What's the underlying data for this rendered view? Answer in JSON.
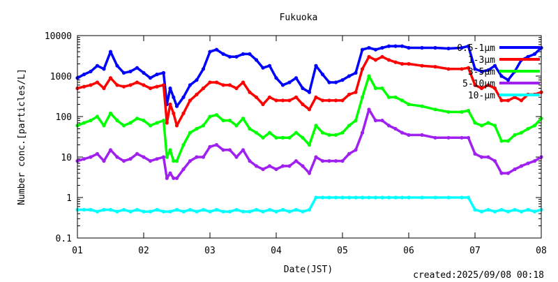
{
  "chart_data": {
    "type": "scatter",
    "title": "Fukuoka",
    "xlabel": "Date(JST)",
    "ylabel": "Number conc.[particles/L]",
    "yscale": "log",
    "ylim": [
      0.1,
      10000
    ],
    "xlim": [
      1,
      8
    ],
    "x_ticks": [
      1,
      2,
      3,
      4,
      5,
      6,
      7,
      8
    ],
    "x_tick_labels": [
      "01",
      "02",
      "03",
      "04",
      "05",
      "06",
      "07",
      "08"
    ],
    "y_ticks": [
      0.1,
      1,
      10,
      100,
      1000,
      10000
    ],
    "y_tick_labels": [
      "0.1",
      "1",
      "10",
      "100",
      "1000",
      "10000"
    ],
    "legend_position": "top-right",
    "footer": "created:2025/09/08 00:18",
    "series": [
      {
        "name": "0.5-1μm",
        "color": "#0000ff",
        "x": [
          1.0,
          1.1,
          1.2,
          1.3,
          1.4,
          1.5,
          1.6,
          1.7,
          1.8,
          1.9,
          2.0,
          2.1,
          2.2,
          2.3,
          2.35,
          2.4,
          2.45,
          2.5,
          2.6,
          2.7,
          2.8,
          2.9,
          3.0,
          3.1,
          3.2,
          3.3,
          3.4,
          3.5,
          3.6,
          3.7,
          3.8,
          3.9,
          4.0,
          4.1,
          4.2,
          4.3,
          4.4,
          4.5,
          4.6,
          4.7,
          4.8,
          4.9,
          5.0,
          5.1,
          5.2,
          5.3,
          5.4,
          5.5,
          5.6,
          5.7,
          5.8,
          5.9,
          6.0,
          6.2,
          6.4,
          6.6,
          6.8,
          6.9,
          7.0,
          7.1,
          7.2,
          7.3,
          7.4,
          7.5,
          7.6,
          7.7,
          7.8,
          7.9,
          8.0
        ],
        "y": [
          900,
          1100,
          1300,
          1800,
          1500,
          4000,
          1800,
          1200,
          1300,
          1600,
          1200,
          900,
          1100,
          1200,
          200,
          500,
          300,
          180,
          300,
          600,
          800,
          1500,
          4000,
          4500,
          3500,
          3000,
          3000,
          3500,
          3500,
          2500,
          1600,
          1800,
          900,
          600,
          700,
          900,
          500,
          400,
          1800,
          1100,
          700,
          700,
          800,
          1000,
          1200,
          4500,
          5000,
          4500,
          5000,
          5500,
          5500,
          5500,
          5000,
          5000,
          5000,
          4800,
          5000,
          5500,
          1500,
          1300,
          1400,
          1800,
          1000,
          800,
          1300,
          2500,
          3000,
          3500,
          5000
        ]
      },
      {
        "name": "1-3μm",
        "color": "#ff0000",
        "x": [
          1.0,
          1.1,
          1.2,
          1.3,
          1.4,
          1.5,
          1.6,
          1.7,
          1.8,
          1.9,
          2.0,
          2.1,
          2.2,
          2.3,
          2.35,
          2.4,
          2.45,
          2.5,
          2.6,
          2.7,
          2.8,
          2.9,
          3.0,
          3.1,
          3.2,
          3.3,
          3.4,
          3.5,
          3.6,
          3.7,
          3.8,
          3.9,
          4.0,
          4.1,
          4.2,
          4.3,
          4.4,
          4.5,
          4.6,
          4.7,
          4.8,
          4.9,
          5.0,
          5.1,
          5.2,
          5.3,
          5.4,
          5.5,
          5.6,
          5.7,
          5.8,
          5.9,
          6.0,
          6.2,
          6.4,
          6.6,
          6.8,
          6.9,
          7.0,
          7.1,
          7.2,
          7.3,
          7.4,
          7.5,
          7.6,
          7.7,
          7.8,
          7.9,
          8.0
        ],
        "y": [
          500,
          550,
          600,
          700,
          500,
          900,
          600,
          550,
          600,
          700,
          600,
          500,
          550,
          600,
          70,
          200,
          120,
          60,
          120,
          250,
          350,
          500,
          700,
          700,
          600,
          600,
          500,
          700,
          400,
          300,
          200,
          300,
          250,
          250,
          250,
          300,
          200,
          150,
          300,
          250,
          250,
          250,
          250,
          350,
          400,
          1500,
          3000,
          2500,
          3000,
          2500,
          2200,
          2000,
          2000,
          1800,
          1700,
          1500,
          1500,
          1600,
          600,
          500,
          600,
          500,
          250,
          250,
          300,
          250,
          350,
          350,
          400
        ]
      },
      {
        "name": "3-5μm",
        "color": "#00ff00",
        "x": [
          1.0,
          1.1,
          1.2,
          1.3,
          1.4,
          1.5,
          1.6,
          1.7,
          1.8,
          1.9,
          2.0,
          2.1,
          2.2,
          2.3,
          2.35,
          2.4,
          2.45,
          2.5,
          2.6,
          2.7,
          2.8,
          2.9,
          3.0,
          3.1,
          3.2,
          3.3,
          3.4,
          3.5,
          3.6,
          3.7,
          3.8,
          3.9,
          4.0,
          4.1,
          4.2,
          4.3,
          4.4,
          4.5,
          4.6,
          4.7,
          4.8,
          4.9,
          5.0,
          5.1,
          5.2,
          5.3,
          5.4,
          5.5,
          5.6,
          5.7,
          5.8,
          5.9,
          6.0,
          6.2,
          6.4,
          6.6,
          6.8,
          6.9,
          7.0,
          7.1,
          7.2,
          7.3,
          7.4,
          7.5,
          7.6,
          7.7,
          7.8,
          7.9,
          8.0
        ],
        "y": [
          60,
          70,
          80,
          100,
          60,
          120,
          80,
          60,
          70,
          90,
          80,
          60,
          70,
          80,
          10,
          15,
          8,
          8,
          20,
          40,
          50,
          60,
          100,
          110,
          80,
          80,
          60,
          90,
          50,
          40,
          30,
          40,
          30,
          30,
          30,
          40,
          30,
          20,
          60,
          40,
          35,
          35,
          40,
          60,
          80,
          300,
          1000,
          500,
          500,
          300,
          300,
          250,
          200,
          180,
          150,
          130,
          130,
          140,
          70,
          60,
          70,
          60,
          25,
          25,
          35,
          40,
          50,
          60,
          90
        ]
      },
      {
        "name": "5-10μm",
        "color": "#a020f0",
        "x": [
          1.0,
          1.1,
          1.2,
          1.3,
          1.4,
          1.5,
          1.6,
          1.7,
          1.8,
          1.9,
          2.0,
          2.1,
          2.2,
          2.3,
          2.35,
          2.4,
          2.45,
          2.5,
          2.6,
          2.7,
          2.8,
          2.9,
          3.0,
          3.1,
          3.2,
          3.3,
          3.4,
          3.5,
          3.6,
          3.7,
          3.8,
          3.9,
          4.0,
          4.1,
          4.2,
          4.3,
          4.4,
          4.5,
          4.6,
          4.7,
          4.8,
          4.9,
          5.0,
          5.1,
          5.2,
          5.3,
          5.4,
          5.5,
          5.6,
          5.7,
          5.8,
          5.9,
          6.0,
          6.2,
          6.4,
          6.6,
          6.8,
          6.9,
          7.0,
          7.1,
          7.2,
          7.3,
          7.4,
          7.5,
          7.6,
          7.7,
          7.8,
          7.9,
          8.0
        ],
        "y": [
          8,
          9,
          10,
          12,
          8,
          15,
          10,
          8,
          9,
          12,
          10,
          8,
          9,
          10,
          3,
          4,
          3,
          3,
          5,
          8,
          10,
          10,
          18,
          20,
          15,
          15,
          10,
          15,
          8,
          6,
          5,
          6,
          5,
          6,
          6,
          8,
          6,
          4,
          10,
          8,
          8,
          8,
          8,
          12,
          15,
          40,
          150,
          80,
          80,
          60,
          50,
          40,
          35,
          35,
          30,
          30,
          30,
          30,
          12,
          10,
          10,
          8,
          4,
          4,
          5,
          6,
          7,
          8,
          10
        ]
      },
      {
        "name": "10-μm",
        "color": "#00ffff",
        "x": [
          1.0,
          1.1,
          1.2,
          1.3,
          1.4,
          1.5,
          1.6,
          1.7,
          1.8,
          1.9,
          2.0,
          2.1,
          2.2,
          2.3,
          2.4,
          2.5,
          2.6,
          2.7,
          2.8,
          2.9,
          3.0,
          3.1,
          3.2,
          3.3,
          3.4,
          3.5,
          3.6,
          3.7,
          3.8,
          3.9,
          4.0,
          4.1,
          4.2,
          4.3,
          4.4,
          4.5,
          4.6,
          4.7,
          4.8,
          4.9,
          5.0,
          5.1,
          5.2,
          5.3,
          5.4,
          5.5,
          5.6,
          5.7,
          5.8,
          5.9,
          6.0,
          6.2,
          6.4,
          6.6,
          6.8,
          6.9,
          7.0,
          7.1,
          7.2,
          7.3,
          7.4,
          7.5,
          7.6,
          7.7,
          7.8,
          7.9,
          8.0
        ],
        "y": [
          0.5,
          0.5,
          0.5,
          0.45,
          0.5,
          0.5,
          0.45,
          0.5,
          0.45,
          0.5,
          0.45,
          0.45,
          0.5,
          0.45,
          0.45,
          0.5,
          0.45,
          0.5,
          0.45,
          0.5,
          0.45,
          0.5,
          0.45,
          0.45,
          0.5,
          0.45,
          0.45,
          0.5,
          0.45,
          0.5,
          0.45,
          0.5,
          0.45,
          0.5,
          0.45,
          0.5,
          1,
          1,
          1,
          1,
          1,
          1,
          1,
          1,
          1,
          1,
          1,
          1,
          1,
          1,
          1,
          1,
          1,
          1,
          1,
          1,
          0.5,
          0.45,
          0.5,
          0.45,
          0.5,
          0.45,
          0.5,
          0.45,
          0.5,
          0.45,
          0.5
        ]
      }
    ]
  }
}
